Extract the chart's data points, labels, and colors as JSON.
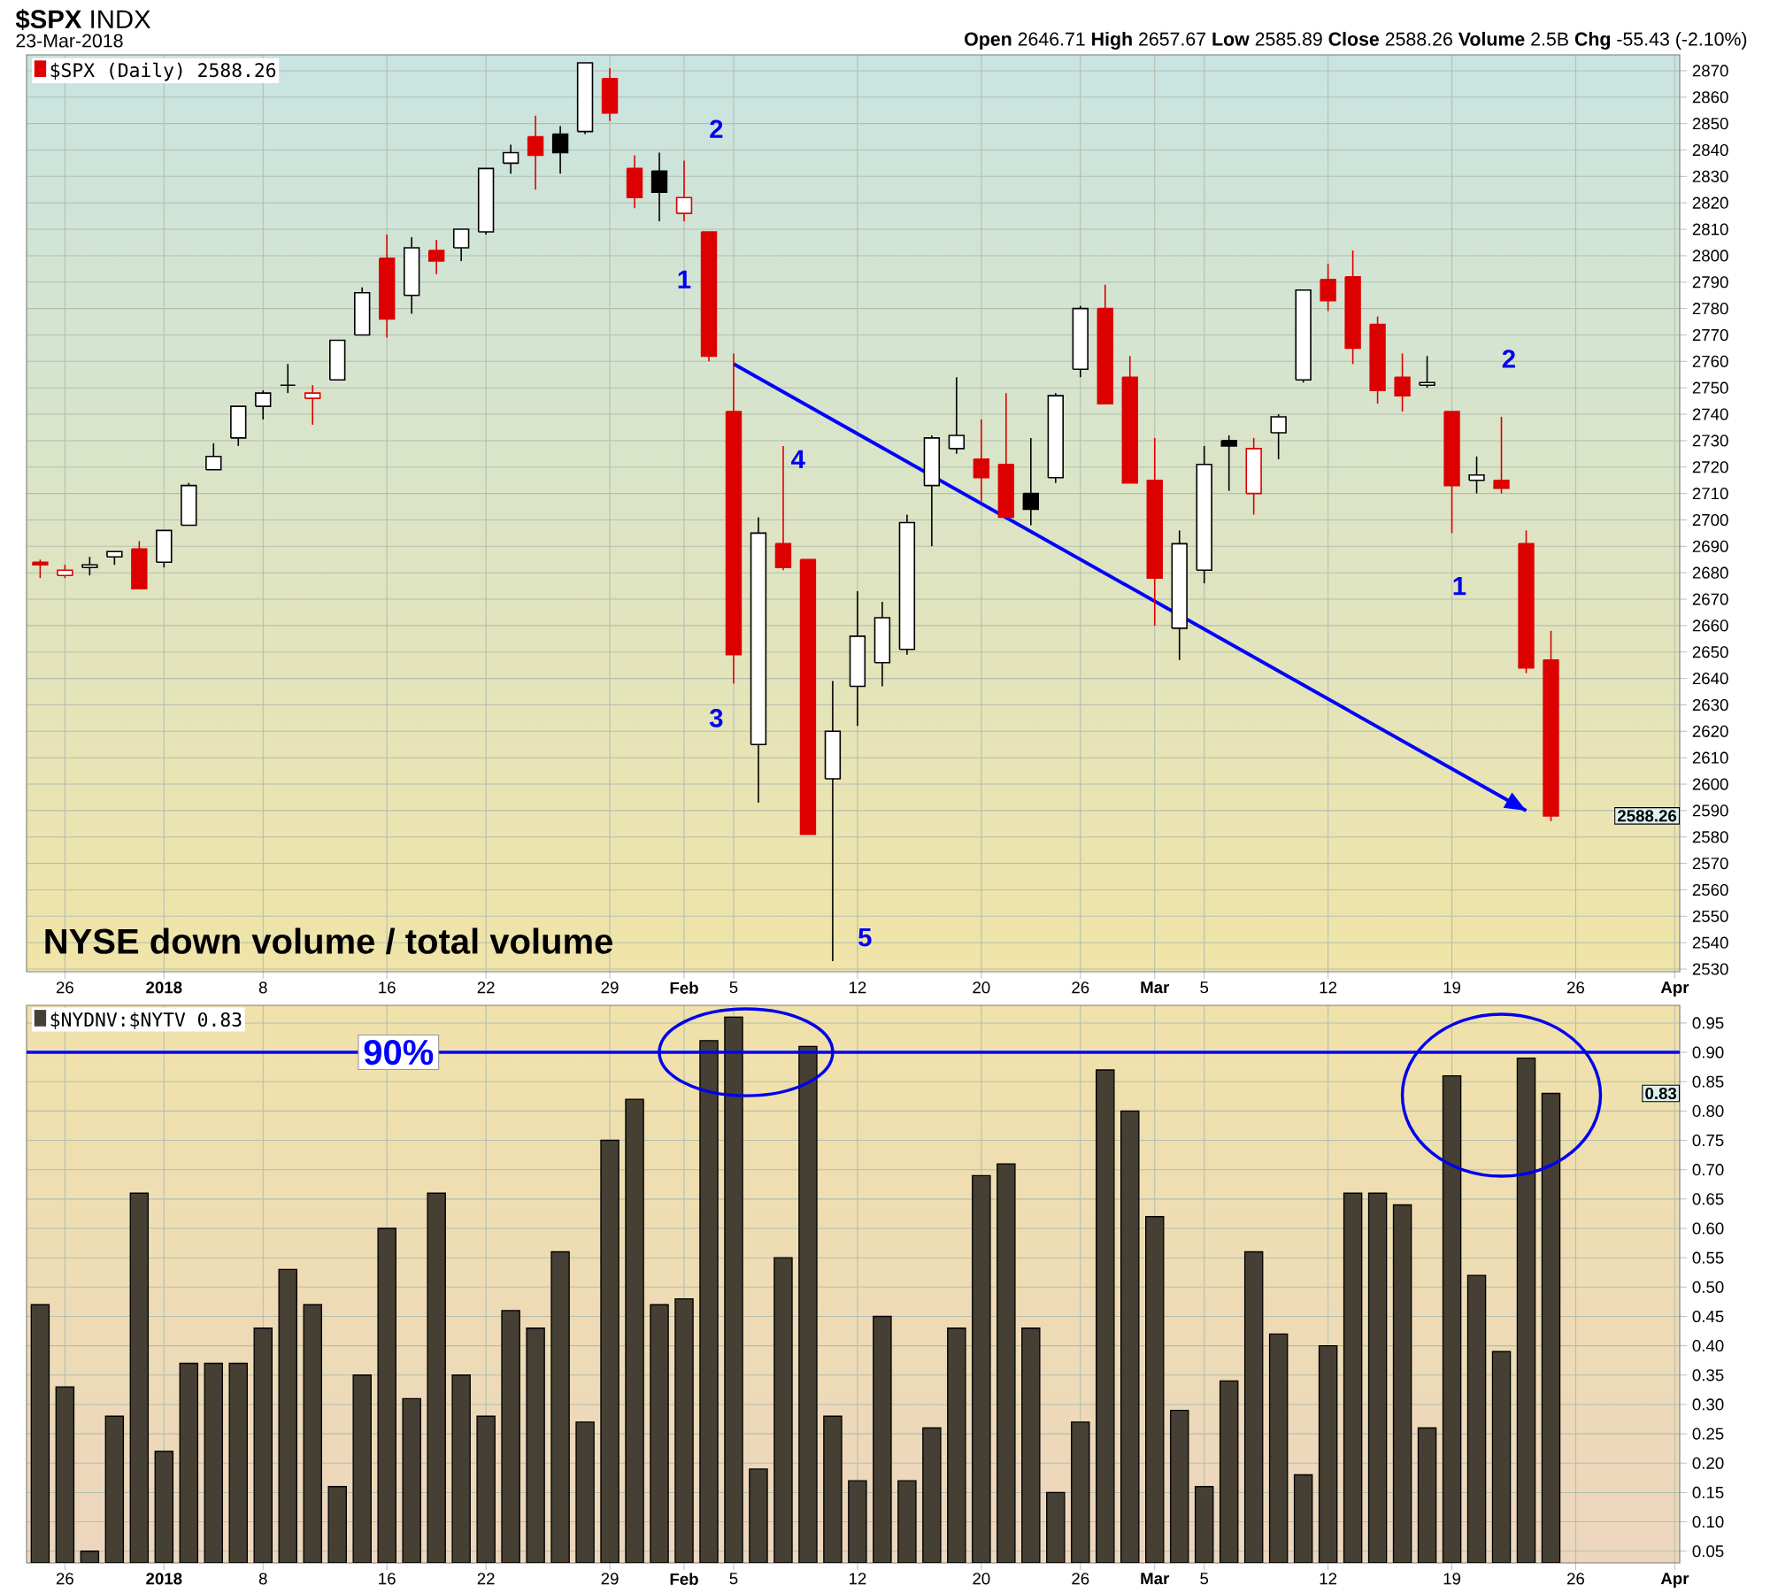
{
  "chart_data": [
    {
      "type": "candlestick",
      "title": "**$SPX** INDX",
      "subtitle": "**Open** 2646.71 **High** 2657.67 **Low** 2585.89 **Close** 2588.26 **Volume** 2.5B **Chg** -55.43 (-2.10%)",
      "annotations": [
        "23-Mar-2018",
        "NYSE down volume / total volume",
        "1",
        "2",
        "3",
        "4",
        "5",
        "1",
        "2",
        "2588.26"
      ],
      "categories": [
        null,
        "26",
        null,
        null,
        null,
        "**2018**",
        null,
        null,
        null,
        "8",
        null,
        null,
        null,
        null,
        "16",
        null,
        null,
        null,
        "22",
        null,
        null,
        null,
        null,
        "29",
        null,
        null,
        "**Feb**",
        null,
        "5",
        null,
        null,
        null,
        null,
        "12",
        null,
        null,
        null,
        null,
        "20",
        null,
        null,
        null,
        "26",
        null,
        null,
        "**Mar**",
        null,
        "5",
        null,
        null,
        null,
        null,
        "12",
        null,
        null,
        null,
        null,
        "19",
        null,
        null,
        null,
        null,
        "26",
        null,
        null,
        null,
        "**Apr**"
      ],
      "ylim": [
        2529,
        2876
      ],
      "yticks": [
        2530,
        2540,
        2550,
        2560,
        2570,
        2580,
        2590,
        2600,
        2610,
        2620,
        2630,
        2640,
        2650,
        2660,
        2670,
        2680,
        2690,
        2700,
        2710,
        2720,
        2730,
        2740,
        2750,
        2760,
        2770,
        2780,
        2790,
        2800,
        2810,
        2820,
        2830,
        2840,
        2850,
        2860,
        2870
      ],
      "grid": true,
      "legend": "top left",
      "series": [
        {
          "type": "line",
          "color": "#0000ff",
          "values": [
            null,
            null,
            null,
            null,
            null,
            null,
            null,
            null,
            null,
            null,
            null,
            null,
            null,
            null,
            null,
            null,
            null,
            null,
            null,
            null,
            null,
            null,
            null,
            null,
            null,
            null,
            null,
            null,
            2759,
            null,
            null,
            null,
            null,
            null,
            null,
            null,
            null,
            null,
            null,
            null,
            null,
            null,
            null,
            null,
            null,
            null,
            null,
            null,
            null,
            null,
            null,
            null,
            null,
            null,
            null,
            null,
            null,
            null,
            null,
            null,
            2590,
            null,
            null,
            null,
            null,
            null,
            null
          ]
        },
        {
          "name": "$SPX (Daily) 2588.26",
          "ohlc": [
            [
              2684,
              2685,
              2678,
              2683
            ],
            [
              2679,
              2683,
              2678,
              2681
            ],
            [
              2682,
              2686,
              2679,
              2683
            ],
            [
              2686,
              2688,
              2683,
              2688
            ],
            [
              2689,
              2692,
              2674,
              2674
            ],
            [
              2684,
              2696,
              2682,
              2696
            ],
            [
              2698,
              2714,
              2698,
              2713
            ],
            [
              2719,
              2729,
              2719,
              2724
            ],
            [
              2731,
              2743,
              2728,
              2743
            ],
            [
              2743,
              2749,
              2738,
              2748
            ],
            [
              2751,
              2759,
              2748,
              2751
            ],
            [
              2746,
              2751,
              2736,
              2748
            ],
            [
              2753,
              2768,
              2753,
              2768
            ],
            [
              2770,
              2788,
              2770,
              2786
            ],
            [
              2799,
              2808,
              2769,
              2776
            ],
            [
              2785,
              2807,
              2778,
              2803
            ],
            [
              2802,
              2806,
              2793,
              2798
            ],
            [
              2803,
              2810,
              2798,
              2810
            ],
            [
              2809,
              2833,
              2808,
              2833
            ],
            [
              2835,
              2842,
              2831,
              2839
            ],
            [
              2845,
              2853,
              2825,
              2838
            ],
            [
              2846,
              2849,
              2831,
              2839
            ],
            [
              2847,
              2873,
              2846,
              2873
            ],
            [
              2867,
              2871,
              2851,
              2854
            ],
            [
              2833,
              2838,
              2818,
              2822
            ],
            [
              2832,
              2839,
              2813,
              2824
            ],
            [
              2816,
              2836,
              2813,
              2822
            ],
            [
              2809,
              2809,
              2760,
              2762
            ],
            [
              2741,
              2763,
              2638,
              2649
            ],
            [
              2615,
              2701,
              2593,
              2695
            ],
            [
              2691,
              2728,
              2681,
              2682
            ],
            [
              2685,
              2685,
              2581,
              2581
            ],
            [
              2602,
              2639,
              2533,
              2620
            ],
            [
              2637,
              2673,
              2622,
              2656
            ],
            [
              2646,
              2669,
              2637,
              2663
            ],
            [
              2651,
              2702,
              2649,
              2699
            ],
            [
              2713,
              2732,
              2690,
              2731
            ],
            [
              2727,
              2754,
              2725,
              2732
            ],
            [
              2723,
              2738,
              2707,
              2716
            ],
            [
              2721,
              2748,
              2701,
              2701
            ],
            [
              2710,
              2731,
              2698,
              2704
            ],
            [
              2716,
              2748,
              2714,
              2747
            ],
            [
              2757,
              2781,
              2754,
              2780
            ],
            [
              2780,
              2789,
              2744,
              2744
            ],
            [
              2754,
              2762,
              2714,
              2714
            ],
            [
              2715,
              2731,
              2660,
              2678
            ],
            [
              2659,
              2696,
              2647,
              2691
            ],
            [
              2681,
              2728,
              2676,
              2721
            ],
            [
              2730,
              2732,
              2711,
              2728
            ],
            [
              2710,
              2731,
              2702,
              2727
            ],
            [
              2733,
              2740,
              2723,
              2739
            ],
            [
              2753,
              2787,
              2752,
              2787
            ],
            [
              2791,
              2797,
              2779,
              2783
            ],
            [
              2792,
              2802,
              2759,
              2765
            ],
            [
              2774,
              2777,
              2744,
              2749
            ],
            [
              2754,
              2763,
              2741,
              2747
            ],
            [
              2751,
              2762,
              2750,
              2752
            ],
            [
              2741,
              2741,
              2695,
              2713
            ],
            [
              2715,
              2724,
              2710,
              2717
            ],
            [
              2715,
              2739,
              2710,
              2712
            ],
            [
              2691,
              2696,
              2642,
              2644
            ],
            [
              2647,
              2658,
              2586,
              2588
            ],
            null,
            null,
            null,
            null,
            null
          ],
          "colors": [
            "#dd0000",
            "#dd0000",
            "#000000",
            "#000000",
            "#dd0000",
            "#000000",
            "#000000",
            "#000000",
            "#000000",
            "#000000",
            "#000000",
            "#dd0000",
            "#000000",
            "#000000",
            "#dd0000",
            "#000000",
            "#dd0000",
            "#000000",
            "#000000",
            "#000000",
            "#dd0000",
            "#000000",
            "#000000",
            "#dd0000",
            "#dd0000",
            "#000000",
            "#dd0000",
            "#dd0000",
            "#dd0000",
            "#000000",
            "#dd0000",
            "#dd0000",
            "#000000",
            "#000000",
            "#000000",
            "#000000",
            "#000000",
            "#000000",
            "#dd0000",
            "#dd0000",
            "#000000",
            "#000000",
            "#000000",
            "#dd0000",
            "#dd0000",
            "#dd0000",
            "#000000",
            "#000000",
            "#000000",
            "#dd0000",
            "#000000",
            "#000000",
            "#dd0000",
            "#dd0000",
            "#dd0000",
            "#dd0000",
            "#000000",
            "#dd0000",
            "#000000",
            "#dd0000",
            "#dd0000",
            "#dd0000",
            null,
            null,
            null,
            null,
            null
          ]
        }
      ]
    },
    {
      "type": "bar",
      "annotations": [
        "0.83"
      ],
      "categories": [
        null,
        "26",
        null,
        null,
        null,
        "**2018**",
        null,
        null,
        null,
        "8",
        null,
        null,
        null,
        null,
        "16",
        null,
        null,
        null,
        "22",
        null,
        null,
        null,
        null,
        "29",
        null,
        null,
        "**Feb**",
        null,
        "5",
        null,
        null,
        null,
        null,
        "12",
        null,
        null,
        null,
        null,
        "20",
        null,
        null,
        null,
        "26",
        null,
        null,
        "**Mar**",
        null,
        "5",
        null,
        null,
        null,
        null,
        "12",
        null,
        null,
        null,
        null,
        "19",
        null,
        null,
        null,
        null,
        "26",
        null,
        null,
        null,
        "**Apr**"
      ],
      "ylim": [
        0.03,
        0.98
      ],
      "yticks": [
        0.05,
        {
          "value": 0.1,
          "label": "0.10"
        },
        0.15,
        {
          "value": 0.2,
          "label": "0.20"
        },
        0.25,
        {
          "value": 0.3,
          "label": "0.30"
        },
        0.35,
        {
          "value": 0.4,
          "label": "0.40"
        },
        0.45,
        {
          "value": 0.5,
          "label": "0.50"
        },
        0.55,
        {
          "value": 0.6,
          "label": "0.60"
        },
        0.65,
        {
          "value": 0.7,
          "label": "0.70"
        },
        0.75,
        {
          "value": 0.8,
          "label": "0.80"
        },
        0.85,
        {
          "value": 0.9,
          "label": "0.90"
        },
        0.95
      ],
      "grid": true,
      "legend": "top left",
      "ref_lines": [
        {
          "axis": "y",
          "value": 0.9,
          "label": "90%",
          "color": "#0000ff"
        }
      ],
      "series": [
        {
          "name": "$NYDNV:$NYTV 0.83",
          "color": "#463f33",
          "values": [
            0.47,
            0.33,
            0.05,
            0.28,
            0.66,
            0.22,
            0.37,
            0.37,
            0.37,
            0.43,
            0.53,
            0.47,
            0.16,
            0.35,
            0.6,
            0.31,
            0.66,
            0.35,
            0.28,
            0.46,
            0.43,
            0.56,
            0.27,
            0.75,
            0.82,
            0.47,
            0.48,
            0.92,
            0.96,
            0.19,
            0.55,
            0.91,
            0.28,
            0.17,
            0.45,
            0.17,
            0.26,
            0.43,
            0.69,
            0.71,
            0.43,
            0.15,
            0.27,
            0.87,
            0.8,
            0.62,
            0.29,
            0.16,
            0.34,
            0.56,
            0.42,
            0.18,
            0.4,
            0.66,
            0.66,
            0.64,
            0.26,
            0.86,
            0.52,
            0.39,
            0.89,
            0.83,
            null,
            null,
            null,
            null,
            null
          ]
        }
      ]
    }
  ]
}
